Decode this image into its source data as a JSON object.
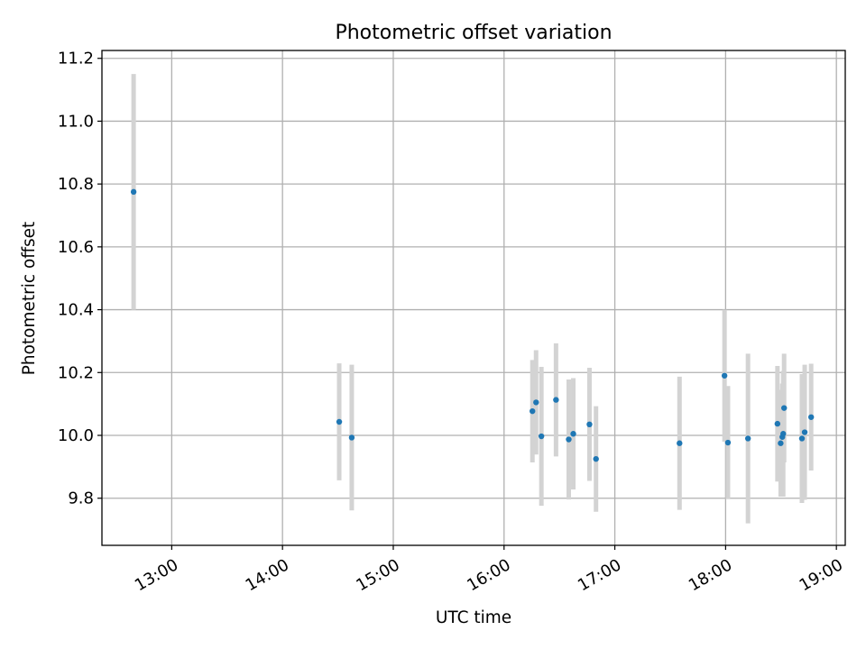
{
  "chart_data": {
    "type": "scatter",
    "title": "Photometric offset variation",
    "xlabel": "UTC time",
    "ylabel": "Photometric offset",
    "xlim": [
      12.37,
      19.08
    ],
    "ylim": [
      9.65,
      11.225
    ],
    "grid": true,
    "x_ticks": [
      {
        "value": 13,
        "label": "13:00"
      },
      {
        "value": 14,
        "label": "14:00"
      },
      {
        "value": 15,
        "label": "15:00"
      },
      {
        "value": 16,
        "label": "16:00"
      },
      {
        "value": 17,
        "label": "17:00"
      },
      {
        "value": 18,
        "label": "18:00"
      },
      {
        "value": 19,
        "label": "19:00"
      }
    ],
    "y_ticks": [
      {
        "value": 9.8,
        "label": "9.8"
      },
      {
        "value": 10.0,
        "label": "10.0"
      },
      {
        "value": 10.2,
        "label": "10.2"
      },
      {
        "value": 10.4,
        "label": "10.4"
      },
      {
        "value": 10.6,
        "label": "10.6"
      },
      {
        "value": 10.8,
        "label": "10.8"
      },
      {
        "value": 11.0,
        "label": "11.0"
      },
      {
        "value": 11.2,
        "label": "11.2"
      }
    ],
    "marker_color": "#1f77b4",
    "errorbar_color": "#d3d3d3",
    "series": [
      {
        "name": "offset",
        "points": [
          {
            "x": 12.656,
            "y": 10.775,
            "yerr": 0.375
          },
          {
            "x": 14.512,
            "y": 10.043,
            "yerr": 0.186
          },
          {
            "x": 14.625,
            "y": 9.993,
            "yerr": 0.232
          },
          {
            "x": 16.256,
            "y": 10.077,
            "yerr": 0.163
          },
          {
            "x": 16.289,
            "y": 10.105,
            "yerr": 0.166
          },
          {
            "x": 16.337,
            "y": 9.997,
            "yerr": 0.221
          },
          {
            "x": 16.469,
            "y": 10.113,
            "yerr": 0.18
          },
          {
            "x": 16.584,
            "y": 9.987,
            "yerr": 0.191
          },
          {
            "x": 16.625,
            "y": 10.005,
            "yerr": 0.177
          },
          {
            "x": 16.771,
            "y": 10.035,
            "yerr": 0.18
          },
          {
            "x": 16.83,
            "y": 9.925,
            "yerr": 0.168
          },
          {
            "x": 17.584,
            "y": 9.975,
            "yerr": 0.212
          },
          {
            "x": 17.99,
            "y": 10.19,
            "yerr": 0.21
          },
          {
            "x": 18.021,
            "y": 9.977,
            "yerr": 0.18
          },
          {
            "x": 18.202,
            "y": 9.99,
            "yerr": 0.27
          },
          {
            "x": 18.468,
            "y": 10.037,
            "yerr": 0.184
          },
          {
            "x": 18.497,
            "y": 9.975,
            "yerr": 0.17
          },
          {
            "x": 18.512,
            "y": 9.995,
            "yerr": 0.17
          },
          {
            "x": 18.52,
            "y": 10.005,
            "yerr": 0.2
          },
          {
            "x": 18.528,
            "y": 10.087,
            "yerr": 0.173
          },
          {
            "x": 18.689,
            "y": 9.99,
            "yerr": 0.205
          },
          {
            "x": 18.714,
            "y": 10.01,
            "yerr": 0.215
          },
          {
            "x": 18.772,
            "y": 10.058,
            "yerr": 0.17
          }
        ]
      }
    ]
  }
}
